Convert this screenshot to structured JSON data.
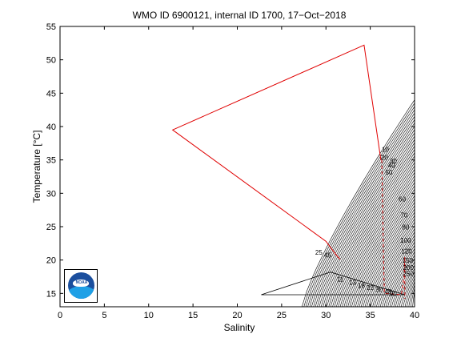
{
  "colors": {
    "profile": "#e00000",
    "profile_dash": "#c00000",
    "isopycnal": "#000000",
    "logo_dark": "#1b4f9e",
    "logo_light": "#1fa0e6"
  },
  "logo": {
    "text": "NOAA"
  },
  "chart_data": {
    "type": "line",
    "title": "WMO ID 6900121, internal ID 1700, 17−Oct−2018",
    "xlabel": "Salinity",
    "ylabel": "Temperature [°C]",
    "xlim": [
      0,
      40
    ],
    "ylim": [
      13,
      55
    ],
    "xticks": [
      0,
      5,
      10,
      15,
      20,
      25,
      30,
      35,
      40
    ],
    "yticks": [
      15,
      20,
      25,
      30,
      35,
      40,
      45,
      50,
      55
    ],
    "grid": false,
    "series": [
      {
        "style": "solid",
        "x": [
          36.2,
          34.3,
          12.7,
          30.0,
          31.2,
          31.6
        ],
        "y": [
          35.0,
          52.2,
          39.5,
          22.8,
          20.7,
          20.1
        ]
      },
      {
        "style": "dashed",
        "x": [
          36.3,
          36.4,
          36.5,
          36.6,
          38.5,
          38.7,
          38.8,
          38.9,
          38.9
        ],
        "y": [
          35.0,
          28.0,
          20.0,
          15.0,
          14.8,
          16.5,
          17.5,
          20.5,
          14.2
        ]
      }
    ],
    "depth_labels": [
      {
        "text": "10",
        "x": 36.7,
        "y": 36.2
      },
      {
        "text": "20",
        "x": 36.6,
        "y": 35.0
      },
      {
        "text": "30",
        "x": 37.6,
        "y": 34.5
      },
      {
        "text": "40",
        "x": 37.4,
        "y": 33.8
      },
      {
        "text": "50",
        "x": 37.1,
        "y": 32.8
      },
      {
        "text": "60",
        "x": 38.6,
        "y": 28.8
      },
      {
        "text": "70",
        "x": 38.8,
        "y": 26.4
      },
      {
        "text": "80",
        "x": 39.0,
        "y": 24.6
      },
      {
        "text": "100",
        "x": 39.0,
        "y": 22.6
      },
      {
        "text": "120",
        "x": 39.1,
        "y": 21.0
      },
      {
        "text": "150",
        "x": 39.2,
        "y": 19.6
      },
      {
        "text": "200",
        "x": 39.3,
        "y": 18.5
      },
      {
        "text": "250",
        "x": 39.3,
        "y": 17.6
      },
      {
        "text": "25",
        "x": 29.2,
        "y": 20.8
      },
      {
        "text": "45",
        "x": 30.2,
        "y": 20.4
      },
      {
        "text": "11",
        "x": 31.6,
        "y": 16.8
      },
      {
        "text": "13",
        "x": 33.0,
        "y": 16.3
      },
      {
        "text": "18",
        "x": 34.0,
        "y": 15.8
      },
      {
        "text": "22",
        "x": 35.0,
        "y": 15.5
      },
      {
        "text": "30",
        "x": 36.0,
        "y": 15.2
      },
      {
        "text": "48",
        "x": 37.0,
        "y": 14.9
      },
      {
        "text": "90",
        "x": 37.6,
        "y": 14.6
      }
    ],
    "isopycnals": {
      "count": 60,
      "s_ref": 40,
      "t_top_left": 44.0,
      "t_top_right": 14.8,
      "bottom_temp": 13,
      "s_at_bottom_first": 27.3
    },
    "wedge": {
      "x": [
        22.7,
        30.5,
        38.9,
        22.7
      ],
      "y": [
        14.8,
        18.2,
        14.8,
        14.8
      ]
    }
  }
}
